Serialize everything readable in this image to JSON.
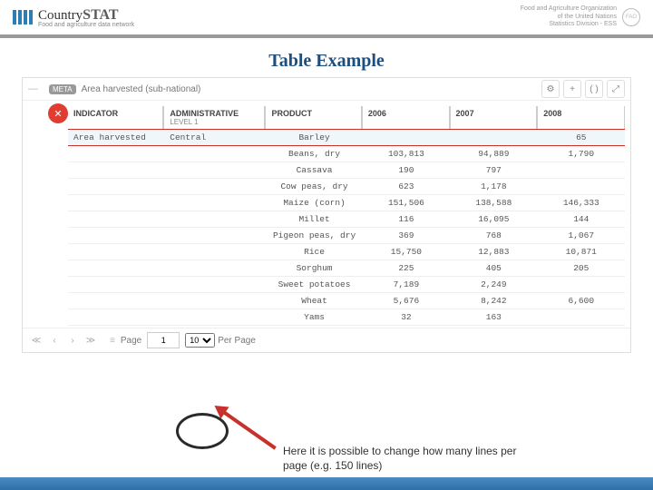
{
  "header": {
    "logo_main": "Country",
    "logo_stat": "STAT",
    "logo_sub": "Food and agriculture data network",
    "fao_line1": "Food and Agriculture Organization",
    "fao_line2": "of the United Nations",
    "fao_line3": "Statistics Division - ESS",
    "fao_seal": "FAO"
  },
  "title": "Table Example",
  "panel": {
    "badge": "META",
    "subtitle": "Area harvested (sub-national)",
    "ctrl_gear": "⚙",
    "ctrl_plus": "+",
    "ctrl_paren": "( )",
    "ctrl_expand": "⤢",
    "share_glyph": "✕"
  },
  "table": {
    "headers": {
      "indicator": "INDICATOR",
      "admin": "ADMINISTRATIVE",
      "admin_sub": "LEVEL 1",
      "product": "PRODUCT",
      "y2006": "2006",
      "y2007": "2007",
      "y2008": "2008"
    },
    "rows": [
      {
        "indicator": "Area harvested",
        "admin": "Central",
        "product": "Barley",
        "y2006": "",
        "y2007": "",
        "y2008": "65"
      },
      {
        "indicator": "",
        "admin": "",
        "product": "Beans, dry",
        "y2006": "103,813",
        "y2007": "94,889",
        "y2008": "1,790"
      },
      {
        "indicator": "",
        "admin": "",
        "product": "Cassava",
        "y2006": "190",
        "y2007": "797",
        "y2008": ""
      },
      {
        "indicator": "",
        "admin": "",
        "product": "Cow peas, dry",
        "y2006": "623",
        "y2007": "1,178",
        "y2008": ""
      },
      {
        "indicator": "",
        "admin": "",
        "product": "Maize (corn)",
        "y2006": "151,506",
        "y2007": "138,588",
        "y2008": "146,333"
      },
      {
        "indicator": "",
        "admin": "",
        "product": "Millet",
        "y2006": "116",
        "y2007": "16,095",
        "y2008": "144"
      },
      {
        "indicator": "",
        "admin": "",
        "product": "Pigeon peas, dry",
        "y2006": "369",
        "y2007": "768",
        "y2008": "1,067"
      },
      {
        "indicator": "",
        "admin": "",
        "product": "Rice",
        "y2006": "15,750",
        "y2007": "12,883",
        "y2008": "10,871"
      },
      {
        "indicator": "",
        "admin": "",
        "product": "Sorghum",
        "y2006": "225",
        "y2007": "405",
        "y2008": "205"
      },
      {
        "indicator": "",
        "admin": "",
        "product": "Sweet potatoes",
        "y2006": "7,189",
        "y2007": "2,249",
        "y2008": ""
      },
      {
        "indicator": "",
        "admin": "",
        "product": "Wheat",
        "y2006": "5,676",
        "y2007": "8,242",
        "y2008": "6,600"
      },
      {
        "indicator": "",
        "admin": "",
        "product": "Yams",
        "y2006": "32",
        "y2007": "163",
        "y2008": ""
      }
    ]
  },
  "pager": {
    "first": "≪",
    "prev": "‹",
    "next": "›",
    "last": "≫",
    "page_label": "Page",
    "page_value": "1",
    "perpage_value": "10",
    "perpage_label": "Per Page"
  },
  "caption": "Here it is possible to change how many lines per page (e.g. 150 lines)"
}
